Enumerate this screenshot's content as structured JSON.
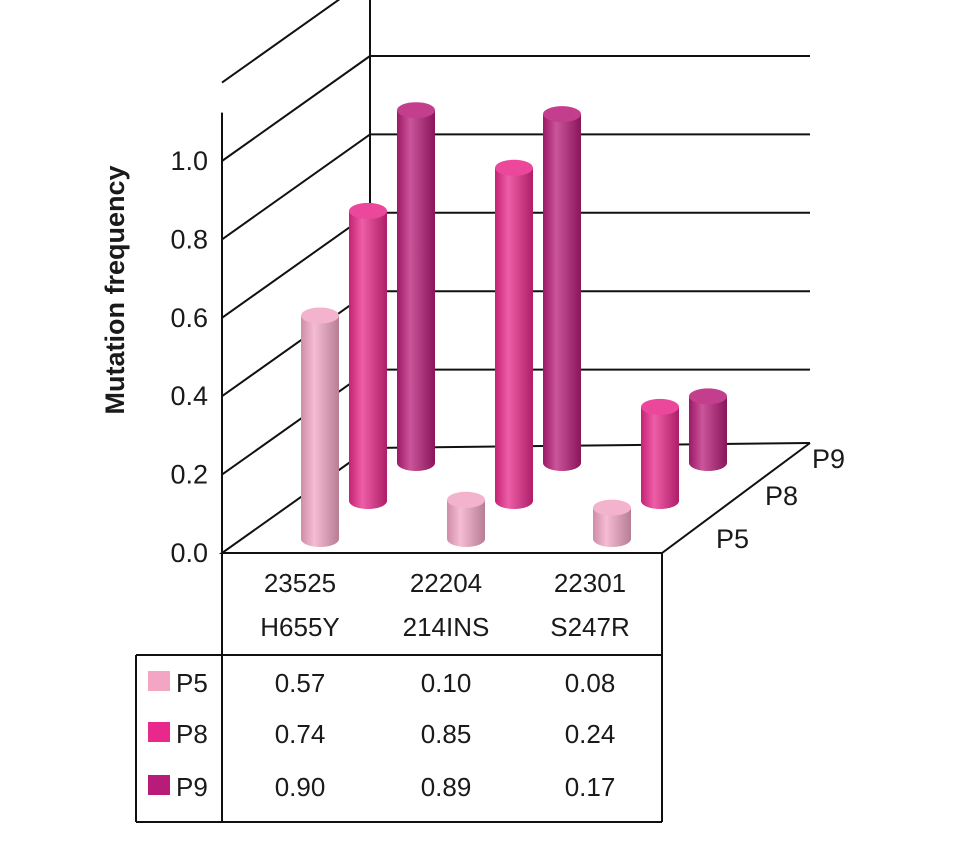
{
  "chart_data": {
    "type": "bar",
    "ylabel": "Mutation frequency",
    "ylim": [
      0,
      1.0
    ],
    "y_ticks": [
      "0.0",
      "0.2",
      "0.4",
      "0.6",
      "0.8",
      "1.0"
    ],
    "categories": [
      {
        "line1": "23525",
        "line2": "H655Y"
      },
      {
        "line1": "22204",
        "line2": "214INS"
      },
      {
        "line1": "22301",
        "line2": "S247R"
      }
    ],
    "series": [
      {
        "name": "P5",
        "color": "#f2a6c4",
        "values": [
          0.57,
          0.1,
          0.08
        ],
        "labels": [
          "0.57",
          "0.10",
          "0.08"
        ]
      },
      {
        "name": "P8",
        "color": "#e8288a",
        "values": [
          0.74,
          0.85,
          0.24
        ],
        "labels": [
          "0.74",
          "0.85",
          "0.24"
        ]
      },
      {
        "name": "P9",
        "color": "#b81c78",
        "values": [
          0.9,
          0.89,
          0.17
        ],
        "labels": [
          "0.90",
          "0.89",
          "0.17"
        ]
      }
    ],
    "grid": true,
    "data_table": true
  }
}
